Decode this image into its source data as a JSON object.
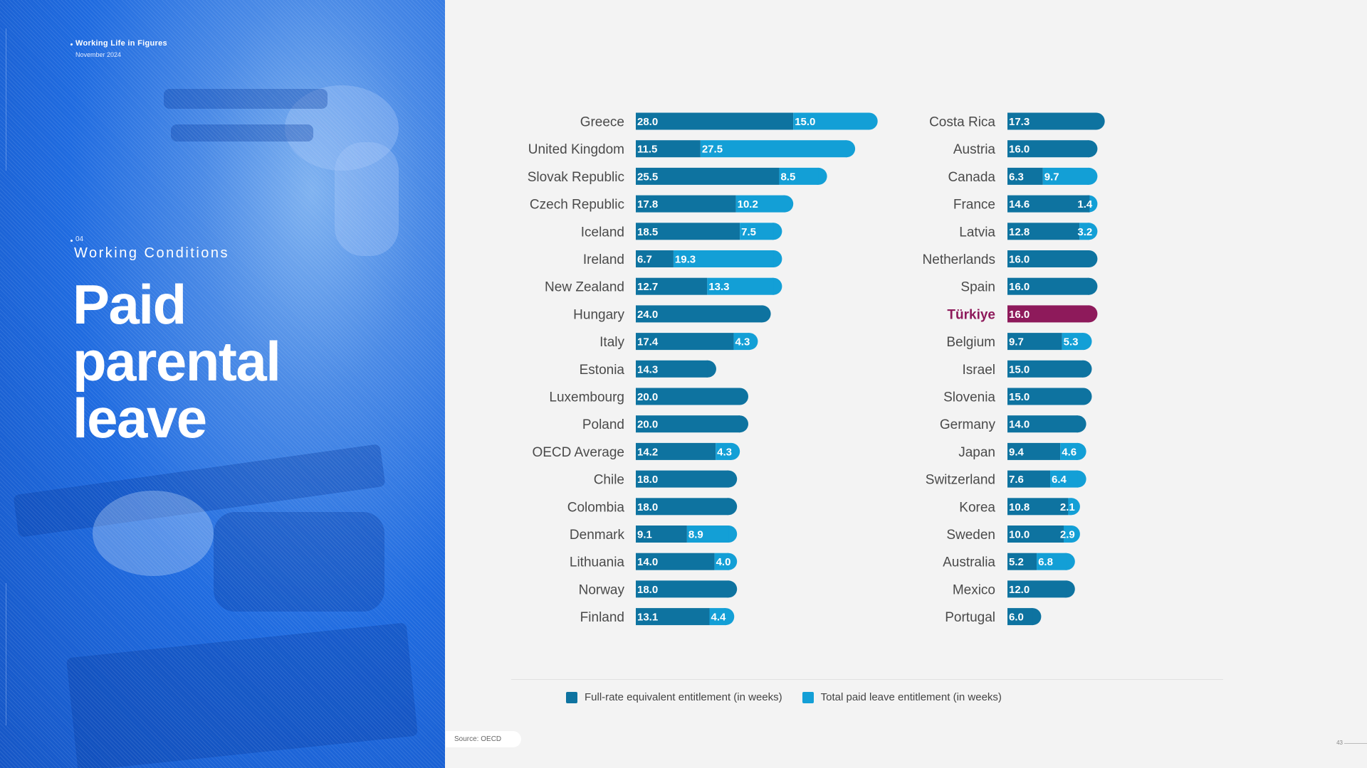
{
  "header": {
    "doc_title": "Working Life in Figures",
    "date": "November 2024"
  },
  "section": {
    "number": "04",
    "name": "Working Conditions"
  },
  "headline": "Paid parental leave",
  "source": "Source: OECD",
  "page_number": "43",
  "colors": {
    "full_rate": "#0e73a0",
    "total_paid": "#139fd6",
    "highlight": "#8e1a5b"
  },
  "chart_data": {
    "type": "bar",
    "orientation": "horizontal",
    "stacked": true,
    "unit": "weeks",
    "highlight_category": "Türkiye",
    "series_names": [
      "Full-rate equivalent entitlement (in weeks)",
      "Total paid leave entitlement (in weeks)"
    ],
    "legend_position": "bottom",
    "columns": [
      {
        "categories": [
          "Greece",
          "United Kingdom",
          "Slovak Republic",
          "Czech Republic",
          "Iceland",
          "Ireland",
          "New Zealand",
          "Hungary",
          "Italy",
          "Estonia",
          "Luxembourg",
          "Poland",
          "OECD Average",
          "Chile",
          "Colombia",
          "Denmark",
          "Lithuania",
          "Norway",
          "Finland"
        ],
        "series": [
          {
            "name": "Full-rate equivalent entitlement (in weeks)",
            "values": [
              28.0,
              11.5,
              25.5,
              17.8,
              18.5,
              6.7,
              12.7,
              24.0,
              17.4,
              14.3,
              20.0,
              20.0,
              14.2,
              18.0,
              18.0,
              9.1,
              14.0,
              18.0,
              13.1
            ]
          },
          {
            "name": "Total paid leave entitlement (in weeks)",
            "values": [
              15.0,
              27.5,
              8.5,
              10.2,
              7.5,
              19.3,
              13.3,
              null,
              4.3,
              null,
              null,
              null,
              4.3,
              null,
              null,
              8.9,
              4.0,
              null,
              4.4
            ]
          }
        ]
      },
      {
        "categories": [
          "Costa Rica",
          "Austria",
          "Canada",
          "France",
          "Latvia",
          "Netherlands",
          "Spain",
          "Türkiye",
          "Belgium",
          "Israel",
          "Slovenia",
          "Germany",
          "Japan",
          "Switzerland",
          "Korea",
          "Sweden",
          "Australia",
          "Mexico",
          "Portugal"
        ],
        "series": [
          {
            "name": "Full-rate equivalent entitlement (in weeks)",
            "values": [
              17.3,
              16.0,
              6.3,
              14.6,
              12.8,
              16.0,
              16.0,
              16.0,
              9.7,
              15.0,
              15.0,
              14.0,
              9.4,
              7.6,
              10.8,
              10.0,
              5.2,
              12.0,
              6.0
            ]
          },
          {
            "name": "Total paid leave entitlement (in weeks)",
            "values": [
              null,
              null,
              9.7,
              1.4,
              3.2,
              null,
              null,
              null,
              5.3,
              null,
              null,
              null,
              4.6,
              6.4,
              2.1,
              2.9,
              6.8,
              null,
              null
            ]
          }
        ]
      }
    ]
  }
}
